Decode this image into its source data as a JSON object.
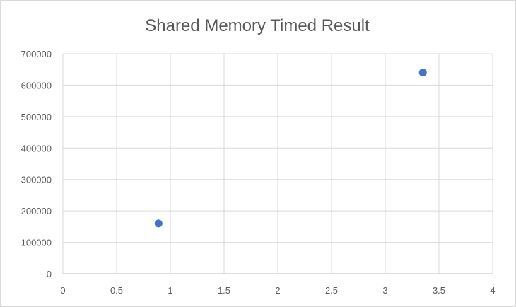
{
  "chart_data": {
    "type": "scatter",
    "title": "Shared Memory Timed Result",
    "xlabel": "",
    "ylabel": "",
    "xlim": [
      0,
      4
    ],
    "ylim": [
      0,
      700000
    ],
    "x_ticks": [
      "0",
      "0.5",
      "1",
      "1.5",
      "2",
      "2.5",
      "3",
      "3.5",
      "4"
    ],
    "y_ticks": [
      "0",
      "100000",
      "200000",
      "300000",
      "400000",
      "500000",
      "600000",
      "700000"
    ],
    "grid": true,
    "legend": "none",
    "series": [
      {
        "points": [
          {
            "x": 0.89,
            "y": 160000
          },
          {
            "x": 3.35,
            "y": 640000
          }
        ],
        "color": "#4472c4"
      }
    ]
  },
  "colors": {
    "grid": "#d9d9d9",
    "axis": "#bfbfbf",
    "text": "#595959",
    "marker": "#4472c4"
  }
}
